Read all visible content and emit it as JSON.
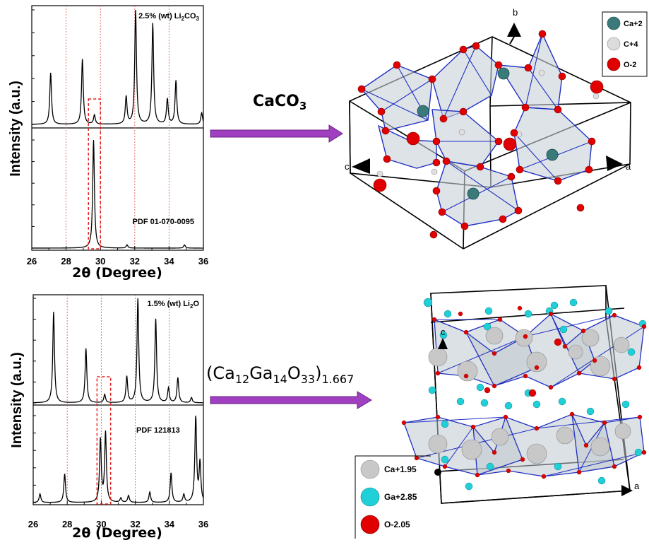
{
  "chart_data": [
    {
      "type": "line",
      "panel": "top-upper",
      "label": "2.5% (wt) Li2CO3",
      "label_main": "2.5% (wt) Li",
      "label_sub": "2",
      "label_end": "CO",
      "label_sub2": "3",
      "xlim": [
        26,
        36
      ],
      "peaks": [
        {
          "x": 27.1,
          "y": 0.45
        },
        {
          "x": 28.95,
          "y": 0.57
        },
        {
          "x": 29.65,
          "y": 0.08
        },
        {
          "x": 31.5,
          "y": 0.24
        },
        {
          "x": 32.05,
          "y": 1.0
        },
        {
          "x": 33.05,
          "y": 0.88
        },
        {
          "x": 33.9,
          "y": 0.22
        },
        {
          "x": 34.4,
          "y": 0.38
        },
        {
          "x": 35.9,
          "y": 0.1
        }
      ]
    },
    {
      "type": "line",
      "panel": "top-lower",
      "label": "PDF 01-070-0095",
      "xlim": [
        26,
        36
      ],
      "peaks": [
        {
          "x": 29.6,
          "y": 1.0
        },
        {
          "x": 31.55,
          "y": 0.03
        },
        {
          "x": 34.9,
          "y": 0.03
        }
      ]
    },
    {
      "type": "line",
      "panel": "bottom-upper",
      "label": "1.5% (wt) Li2O",
      "label_main": "1.5% (wt) Li",
      "label_sub": "2",
      "label_end": "O",
      "xlim": [
        26,
        36
      ],
      "peaks": [
        {
          "x": 27.2,
          "y": 0.87
        },
        {
          "x": 29.1,
          "y": 0.52
        },
        {
          "x": 30.2,
          "y": 0.08
        },
        {
          "x": 31.5,
          "y": 0.25
        },
        {
          "x": 32.15,
          "y": 1.0
        },
        {
          "x": 33.2,
          "y": 0.8
        },
        {
          "x": 33.95,
          "y": 0.14
        },
        {
          "x": 34.5,
          "y": 0.24
        },
        {
          "x": 35.3,
          "y": 0.05
        }
      ]
    },
    {
      "type": "line",
      "panel": "bottom-lower",
      "label": "PDF 121813",
      "xlim": [
        26,
        36
      ],
      "peaks": [
        {
          "x": 26.4,
          "y": 0.1
        },
        {
          "x": 27.85,
          "y": 0.33
        },
        {
          "x": 29.95,
          "y": 0.72
        },
        {
          "x": 30.25,
          "y": 0.8
        },
        {
          "x": 31.15,
          "y": 0.05
        },
        {
          "x": 31.6,
          "y": 0.08
        },
        {
          "x": 32.85,
          "y": 0.12
        },
        {
          "x": 34.1,
          "y": 0.34
        },
        {
          "x": 34.85,
          "y": 0.09
        },
        {
          "x": 35.55,
          "y": 1.0
        },
        {
          "x": 35.8,
          "y": 0.45
        }
      ]
    }
  ],
  "axes": {
    "ylabel": "Intensity (a.u.)",
    "xlabel": "2θ (Degree)",
    "xticks": [
      "26",
      "28",
      "30",
      "32",
      "34",
      "36"
    ],
    "grid_color": "#e06060",
    "box_color": "#e02020"
  },
  "arrows": {
    "top_formula_main": "CaCO",
    "top_formula_sub": "3",
    "bottom_formula": "(Ca12Ga14O33)1.667",
    "bf_open": "(Ca",
    "bf_s1": "12",
    "bf_ga": "Ga",
    "bf_s2": "14",
    "bf_o": "O",
    "bf_s3": "33",
    "bf_close": ")",
    "bf_s4": "1.667",
    "color": "#a040c0"
  },
  "structure_top": {
    "legend": [
      {
        "label": "Ca+2",
        "color": "#3a7a7a"
      },
      {
        "label": "C+4",
        "color": "#d8d8d8"
      },
      {
        "label": "O-2",
        "color": "#e00000"
      }
    ],
    "axes": {
      "a": "a",
      "b": "b",
      "c": "c"
    }
  },
  "structure_bottom": {
    "legend": [
      {
        "label": "Ca+1.95",
        "color": "#c8c8c8"
      },
      {
        "label": "Ga+2.85",
        "color": "#20d0d8"
      },
      {
        "label": "O-2.05",
        "color": "#e00000"
      }
    ],
    "axes": {
      "a": "a",
      "c": "c"
    }
  }
}
